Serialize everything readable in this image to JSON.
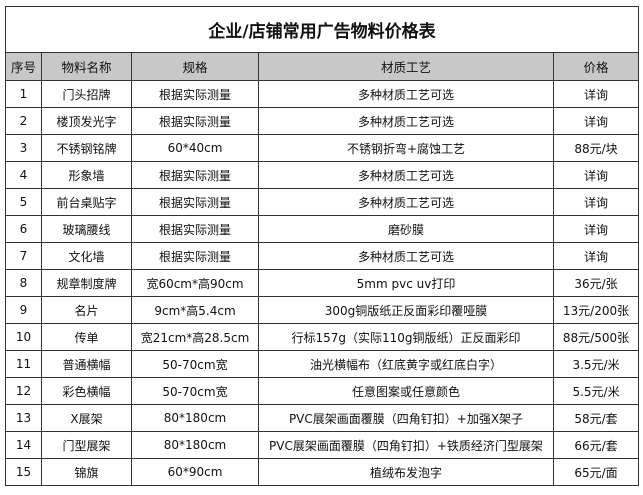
{
  "title": "企业/店铺常用广告物料价格表",
  "headers": [
    "序号",
    "物料名称",
    "规格",
    "材质工艺",
    "价格"
  ],
  "rows": [
    [
      "1",
      "门头招牌",
      "根据实际测量",
      "多种材质工艺可选",
      "详询"
    ],
    [
      "2",
      "楼顶发光字",
      "根据实际测量",
      "多种材质工艺可选",
      "详询"
    ],
    [
      "3",
      "不锈钢铭牌",
      "60*40cm",
      "不锈钢折弯+腐蚀工艺",
      "88元/块"
    ],
    [
      "4",
      "形象墙",
      "根据实际测量",
      "多种材质工艺可选",
      "详询"
    ],
    [
      "5",
      "前台桌贴字",
      "根据实际测量",
      "多种材质工艺可选",
      "详询"
    ],
    [
      "6",
      "玻璃腰线",
      "根据实际测量",
      "磨砂膜",
      "详询"
    ],
    [
      "7",
      "文化墙",
      "根据实际测量",
      "多种材质工艺可选",
      "详询"
    ],
    [
      "8",
      "规章制度牌",
      "宽60cm*高90cm",
      "5mm pvc uv打印",
      "36元/张"
    ],
    [
      "9",
      "名片",
      "9cm*高5.4cm",
      "300g铜版纸正反面彩印覆哑膜",
      "13元/200张"
    ],
    [
      "10",
      "传单",
      "宽21cm*高28.5cm",
      "行标157g（实际110g铜版纸）正反面彩印",
      "88元/500张"
    ],
    [
      "11",
      "普通横幅",
      "50-70cm宽",
      "油光横幅布（红底黄字或红底白字）",
      "3.5元/米"
    ],
    [
      "12",
      "彩色横幅",
      "50-70cm宽",
      "任意图案或任意颜色",
      "5.5元/米"
    ],
    [
      "13",
      "X展架",
      "80*180cm",
      "PVC展架画面覆膜（四角钉扣）+加强X架子",
      "58元/套"
    ],
    [
      "14",
      "门型展架",
      "80*180cm",
      "PVC展架画面覆膜（四角钉扣）+铁质经济门型展架",
      "66元/套"
    ],
    [
      "15",
      "锦旗",
      "60*90cm",
      "植绒布发泡字",
      "65元/面"
    ]
  ]
}
